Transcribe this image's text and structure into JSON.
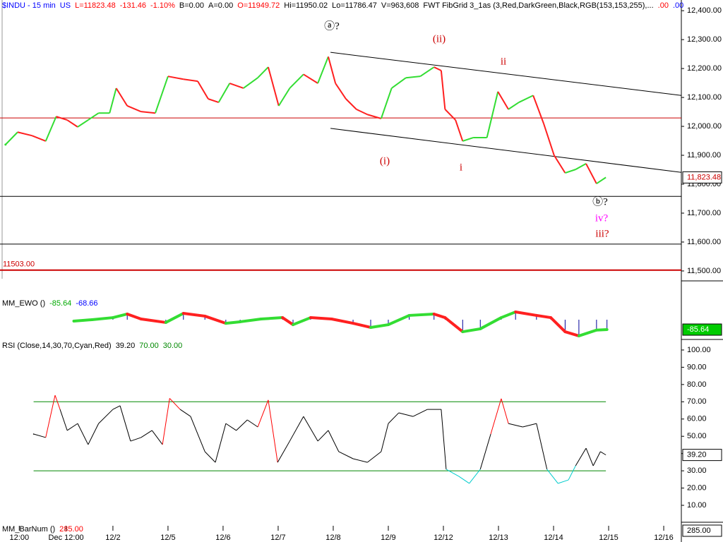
{
  "chart_data": [
    {
      "type": "line",
      "header": [
        {
          "text": "$INDU - 15 min",
          "color": "#0000ff"
        },
        {
          "text": "US",
          "color": "#0000ff"
        },
        {
          "text": "L=11823.48",
          "color": "#ff0000"
        },
        {
          "text": "-131.46",
          "color": "#ff0000"
        },
        {
          "text": "-1.10%",
          "color": "#ff0000"
        },
        {
          "text": "B=0.00",
          "color": "#000000"
        },
        {
          "text": "A=0.00",
          "color": "#000000"
        },
        {
          "text": "O=11949.72",
          "color": "#ff0000"
        },
        {
          "text": "Hi=11950.02",
          "color": "#000000"
        },
        {
          "text": "Lo=11786.47",
          "color": "#000000"
        },
        {
          "text": "V=963,608",
          "color": "#000000"
        },
        {
          "text": "FWT FibGrid 3_1as (3,Red,DarkGreen,Black,RGB(153,153,255),...",
          "color": "#000000"
        },
        {
          "text": ".00",
          "color": "#ff0000"
        },
        {
          "text": ".00",
          "color": "#0000ff"
        }
      ],
      "up_color": "#33dd33",
      "down_color": "#ff2020",
      "x": [
        -1.95,
        -1.73,
        -1.47,
        -1.22,
        -1.03,
        -0.83,
        -0.64,
        -0.45,
        -0.26,
        -0.06,
        0.06,
        0.26,
        0.51,
        0.77,
        1.0,
        1.28,
        1.54,
        1.73,
        1.92,
        2.12,
        2.37,
        2.63,
        2.82,
        3.01,
        3.21,
        3.46,
        3.72,
        3.91,
        4.04,
        4.23,
        4.42,
        4.62,
        4.87,
        5.06,
        5.32,
        5.58,
        5.83,
        5.96,
        6.03,
        6.22,
        6.35,
        6.54,
        6.79,
        6.99,
        7.18,
        7.37,
        7.63,
        7.82,
        8.01,
        8.21,
        8.4,
        8.59,
        8.78,
        8.95
      ],
      "values": [
        11937,
        11980,
        11968,
        11949,
        12034,
        12022,
        11998,
        12022,
        12046,
        12046,
        12132,
        12071,
        12051,
        12046,
        12173,
        12163,
        12156,
        12095,
        12083,
        12149,
        12132,
        12168,
        12205,
        12071,
        12132,
        12180,
        12149,
        12241,
        12149,
        12095,
        12059,
        12041,
        12027,
        12132,
        12168,
        12173,
        12205,
        12193,
        12059,
        12022,
        11949,
        11961,
        11961,
        12120,
        12059,
        12083,
        12107,
        12010,
        11900,
        11839,
        11851,
        11871,
        11802,
        11823.48
      ],
      "xlim": [
        -2.05,
        10.32
      ],
      "xticks": [
        {
          "value": -1.7,
          "label": "12:00"
        },
        {
          "value": -0.85,
          "label": "Dec 12:00"
        },
        {
          "value": 0,
          "label": "12/2"
        },
        {
          "value": 1,
          "label": "12/5"
        },
        {
          "value": 2,
          "label": "12/6"
        },
        {
          "value": 3,
          "label": "12/7"
        },
        {
          "value": 4,
          "label": "12/8"
        },
        {
          "value": 5,
          "label": "12/9"
        },
        {
          "value": 6,
          "label": "12/12"
        },
        {
          "value": 7,
          "label": "12/13"
        },
        {
          "value": 8,
          "label": "12/14"
        },
        {
          "value": 9,
          "label": "12/15"
        },
        {
          "value": 10,
          "label": "12/16"
        }
      ],
      "ylim": [
        11473,
        12437
      ],
      "yticks": [
        {
          "value": 11500,
          "label": "11,500.00"
        },
        {
          "value": 11600,
          "label": "11,600.00"
        },
        {
          "value": 11700,
          "label": "11,700.00"
        },
        {
          "value": 11800,
          "label": "11,800.00"
        },
        {
          "value": 11900,
          "label": "11,900.00"
        },
        {
          "value": 12000,
          "label": "12,000.00"
        },
        {
          "value": 12100,
          "label": "12,100.00"
        },
        {
          "value": 12200,
          "label": "12,200.00"
        },
        {
          "value": 12300,
          "label": "12,300.00"
        },
        {
          "value": 12400,
          "label": "12,400.00"
        }
      ],
      "last_price": {
        "value": 11823.48,
        "label": "11,823.48"
      },
      "levels": [
        {
          "value": 12029,
          "color": "#cc0000"
        },
        {
          "value": 11758,
          "color": "#000000"
        },
        {
          "value": 11593,
          "color": "#000000"
        },
        {
          "value": 11503,
          "label": "11503.00",
          "color": "#cc0000"
        }
      ],
      "channel": [
        {
          "x": [
            3.95,
            10.32
          ],
          "values": [
            12256,
            12107
          ]
        },
        {
          "x": [
            3.95,
            10.32
          ],
          "values": [
            11993,
            11841
          ]
        }
      ],
      "annotations": [
        {
          "text": "ⓐ?",
          "color": "#000000"
        },
        {
          "text": "(ii)",
          "color": "#cc0000"
        },
        {
          "text": "ii",
          "color": "#cc0000"
        },
        {
          "text": "(i)",
          "color": "#cc0000"
        },
        {
          "text": "i",
          "color": "#cc0000"
        },
        {
          "text": "ⓑ?",
          "color": "#000000"
        },
        {
          "text": "iv?",
          "color": "#ff00ff"
        },
        {
          "text": "iii?",
          "color": "#cc0000"
        }
      ]
    },
    {
      "type": "oscillator",
      "header": [
        {
          "text": "MM_EWO ()",
          "color": "#000000"
        },
        {
          "text": "-85.64",
          "color": "#00aa00"
        },
        {
          "text": "-68.66",
          "color": "#0000ff"
        }
      ],
      "up_color": "#33dd33",
      "down_color": "#ff2020",
      "hist_color": "#000099",
      "x": [
        -0.71,
        -0.38,
        0,
        0.26,
        0.51,
        0.96,
        1.28,
        1.67,
        2.05,
        2.31,
        2.69,
        3.08,
        3.27,
        3.59,
        3.97,
        4.36,
        4.68,
        5.0,
        5.38,
        5.83,
        6.03,
        6.35,
        6.67,
        7.05,
        7.31,
        7.69,
        7.95,
        8.21,
        8.46,
        8.78,
        8.97
      ],
      "values": [
        -12,
        0,
        18,
        49,
        6,
        -24,
        55,
        31,
        -31,
        -18,
        6,
        18,
        -43,
        18,
        6,
        -31,
        -67,
        -43,
        37,
        49,
        18,
        -104,
        -79,
        18,
        67,
        37,
        18,
        -104,
        -140,
        -90,
        -85.64
      ],
      "ylim": [
        -177,
        293
      ],
      "last_value": {
        "value": -85.64,
        "label": "-85.64",
        "color": "#00cc00"
      }
    },
    {
      "type": "rsi",
      "header": [
        {
          "text": "RSI (Close,14,30,70,Cyan,Red)",
          "color": "#000000"
        },
        {
          "text": "39.20",
          "color": "#000000"
        },
        {
          "text": "70.00",
          "color": "#008800"
        },
        {
          "text": "30.00",
          "color": "#008800"
        }
      ],
      "x": [
        -1.44,
        -1.22,
        -1.05,
        -0.96,
        -0.83,
        -0.64,
        -0.45,
        -0.26,
        0,
        0.13,
        0.32,
        0.51,
        0.71,
        0.9,
        1.03,
        1.22,
        1.41,
        1.67,
        1.86,
        2.05,
        2.24,
        2.44,
        2.63,
        2.82,
        2.99,
        3.21,
        3.46,
        3.72,
        3.91,
        4.1,
        4.36,
        4.62,
        4.87,
        5.0,
        5.19,
        5.45,
        5.71,
        5.96,
        6.05,
        6.28,
        6.47,
        6.67,
        6.86,
        7.05,
        7.18,
        7.44,
        7.69,
        7.88,
        8.08,
        8.27,
        8.4,
        8.59,
        8.72,
        8.85,
        8.95
      ],
      "values": [
        51.3,
        49.3,
        73.8,
        65.6,
        53.4,
        57.4,
        45.2,
        57.4,
        65.6,
        67.7,
        47.2,
        49.3,
        53.4,
        45.2,
        72,
        65.6,
        61.5,
        41.1,
        34.9,
        57.4,
        53.4,
        59.5,
        55.4,
        71,
        34.9,
        47.2,
        61.5,
        47.2,
        53.4,
        41.1,
        37,
        34.9,
        41.1,
        57.4,
        63.6,
        61.5,
        65.6,
        65.6,
        30.9,
        26.8,
        22.7,
        30.9,
        51.3,
        71.8,
        57.4,
        55.4,
        57.4,
        30.9,
        22.7,
        24.7,
        32.9,
        43.1,
        32.9,
        41.1,
        39.2
      ],
      "ylim": [
        0.2,
        105.7
      ],
      "yticks": [
        {
          "value": 10,
          "label": "10.00"
        },
        {
          "value": 20,
          "label": "20.00"
        },
        {
          "value": 30,
          "label": "30.00"
        },
        {
          "value": 40,
          "label": "40.00"
        },
        {
          "value": 50,
          "label": "50.00"
        },
        {
          "value": 60,
          "label": "60.00"
        },
        {
          "value": 70,
          "label": "70.00"
        },
        {
          "value": 80,
          "label": "80.00"
        },
        {
          "value": 90,
          "label": "90.00"
        },
        {
          "value": 100,
          "label": "100.00"
        }
      ],
      "bands": [
        70,
        30
      ],
      "band_color": "#008800",
      "high_color": "#ff0000",
      "low_color": "#00cccc",
      "mid_color": "#000000",
      "last_value": {
        "value": 39.2,
        "label": "39.20",
        "color": "#000000"
      }
    },
    {
      "type": "barnum",
      "header": [
        {
          "text": "MM_BarNum ()",
          "color": "#000000"
        },
        {
          "text": "285.00",
          "color": "#ff0000"
        }
      ],
      "last_value": {
        "value": 285,
        "label": "285.00"
      }
    }
  ]
}
